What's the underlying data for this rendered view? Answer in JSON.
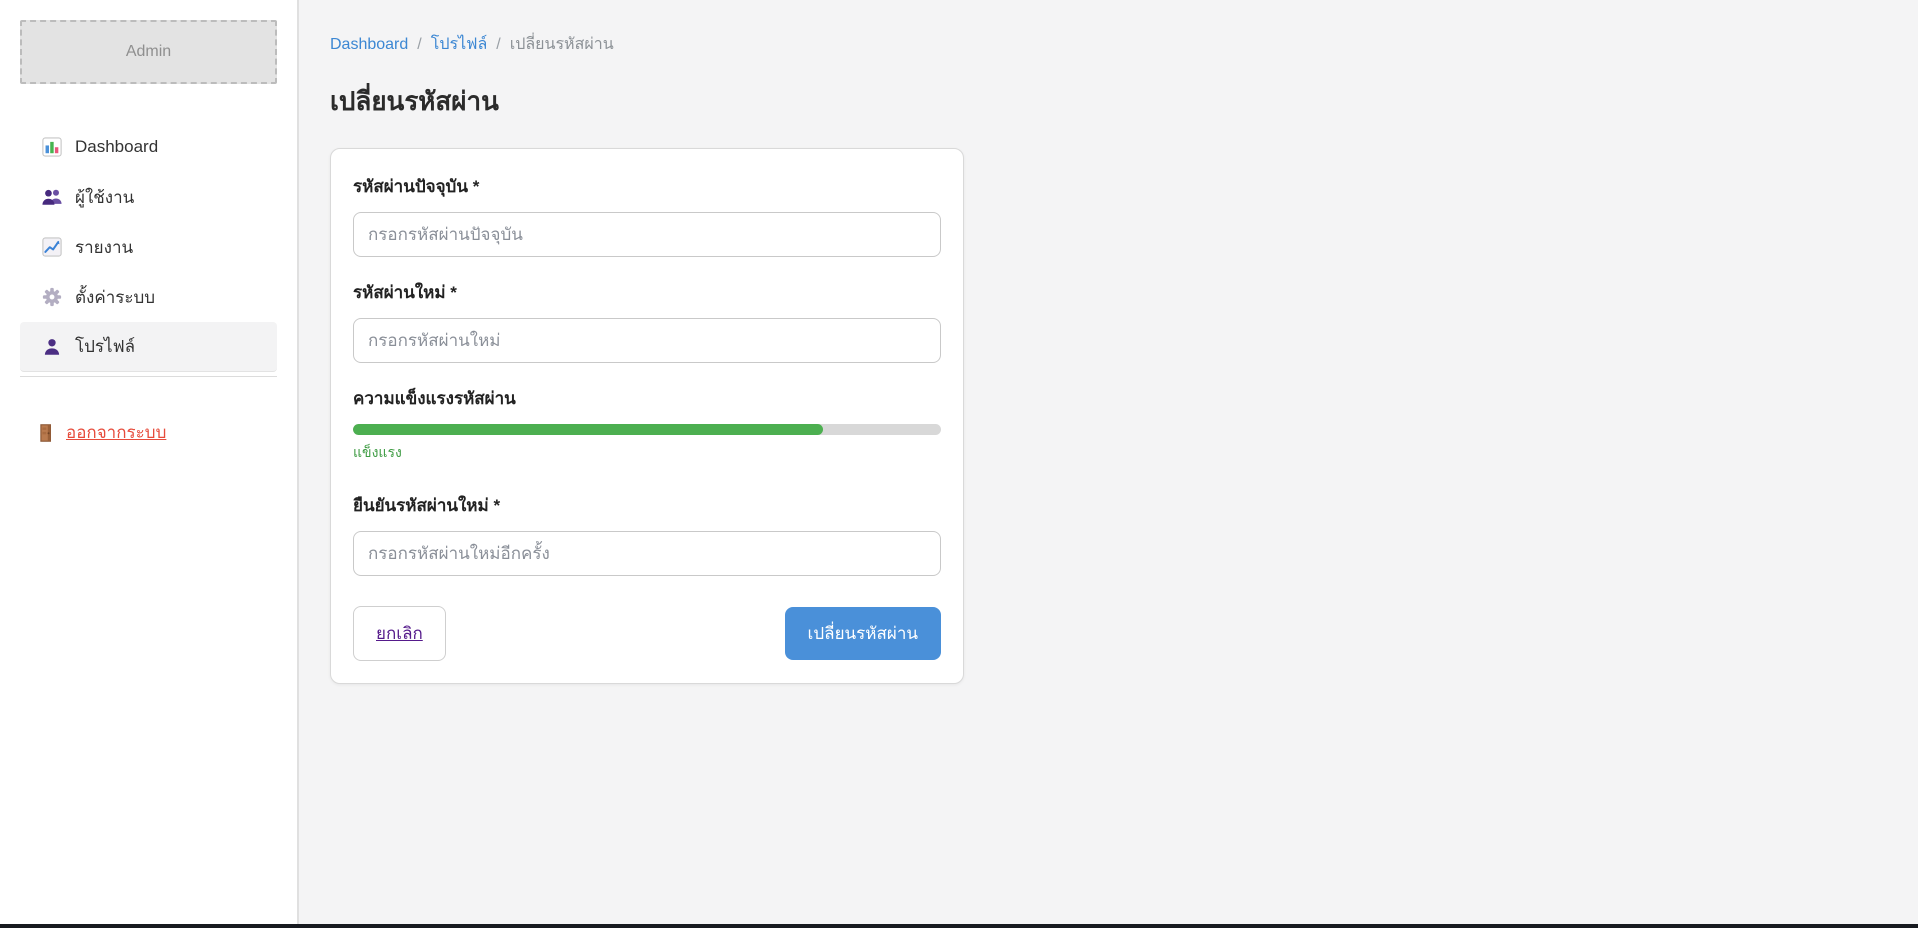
{
  "sidebar": {
    "brand": "Admin",
    "items": [
      {
        "label": "Dashboard",
        "icon": "bar-chart-icon"
      },
      {
        "label": "ผู้ใช้งาน",
        "icon": "users-icon"
      },
      {
        "label": "รายงาน",
        "icon": "line-chart-icon"
      },
      {
        "label": "ตั้งค่าระบบ",
        "icon": "gear-icon"
      },
      {
        "label": "โปรไฟล์",
        "icon": "person-icon",
        "active": true
      }
    ],
    "logout": {
      "label": "ออกจากระบบ",
      "icon": "door-icon"
    }
  },
  "breadcrumb": {
    "separator": "/",
    "items": [
      {
        "label": "Dashboard",
        "link": true
      },
      {
        "label": "โปรไฟล์",
        "link": true
      },
      {
        "label": "เปลี่ยนรหัสผ่าน",
        "link": false
      }
    ]
  },
  "page": {
    "title": "เปลี่ยนรหัสผ่าน"
  },
  "form": {
    "current_password": {
      "label": "รหัสผ่านปัจจุบัน *",
      "placeholder": "กรอกรหัสผ่านปัจจุบัน",
      "value": ""
    },
    "new_password": {
      "label": "รหัสผ่านใหม่ *",
      "placeholder": "กรอกรหัสผ่านใหม่",
      "value": ""
    },
    "strength": {
      "label": "ความแข็งแรงรหัสผ่าน",
      "percent": 80,
      "status": "แข็งแรง",
      "bar_color": "#4caf50",
      "track_color": "#d8d8d8"
    },
    "confirm_password": {
      "label": "ยืนยันรหัสผ่านใหม่ *",
      "placeholder": "กรอกรหัสผ่านใหม่อีกครั้ง",
      "value": ""
    },
    "cancel_label": "ยกเลิก",
    "submit_label": "เปลี่ยนรหัสผ่าน"
  },
  "colors": {
    "page_background": "#f4f4f5",
    "sidebar_background": "#ffffff",
    "accent_blue": "#4a90d9",
    "link_blue": "#3c87d3",
    "strength_green": "#4caf50",
    "logout_red": "#e74c3c",
    "cancel_purple": "#551a8b"
  }
}
